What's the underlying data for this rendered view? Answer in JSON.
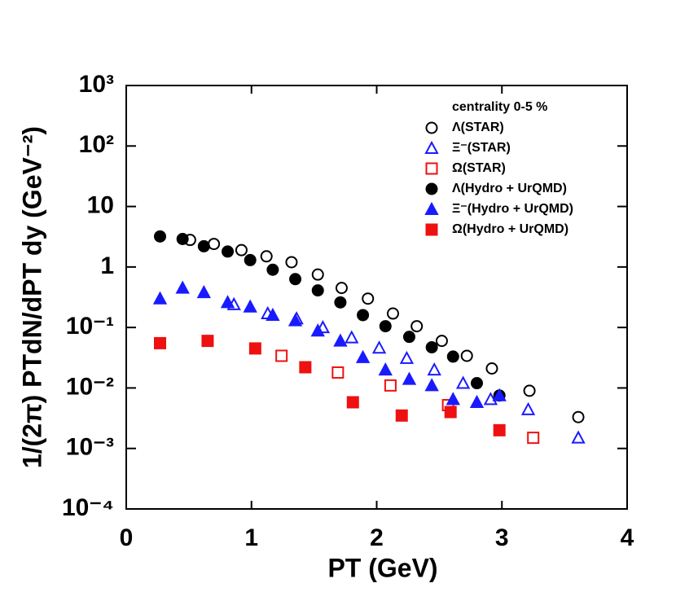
{
  "chart_data": {
    "type": "scatter",
    "xlabel": "PT (GeV)",
    "ylabel": "1/(2π) PTdN/dPT dy (GeV⁻²)",
    "log_y": true,
    "xlim": [
      0,
      4
    ],
    "ylim": [
      0.0001,
      1000
    ],
    "xticks": [
      0,
      1,
      2,
      3,
      4
    ],
    "yticks": [
      {
        "value": 0.0001,
        "label": "10⁻⁴"
      },
      {
        "value": 0.001,
        "label": "10⁻³"
      },
      {
        "value": 0.01,
        "label": "10⁻²"
      },
      {
        "value": 0.1,
        "label": "10⁻¹"
      },
      1,
      10,
      {
        "value": 100,
        "label": "10²"
      },
      {
        "value": 1000,
        "label": "10³"
      }
    ],
    "legend_title": "centrality 0-5 %",
    "legend_position": "upper right",
    "series": [
      {
        "name": "Λ(STAR)",
        "color": "#000000",
        "marker": "circle",
        "filled": false,
        "x": [
          0.51,
          0.7,
          0.92,
          1.12,
          1.32,
          1.53,
          1.72,
          1.93,
          2.13,
          2.32,
          2.52,
          2.72,
          2.92,
          3.22,
          3.61
        ],
        "values": [
          2.8,
          2.4,
          1.9,
          1.5,
          1.2,
          0.75,
          0.45,
          0.3,
          0.17,
          0.105,
          0.06,
          0.034,
          0.021,
          0.009,
          0.0033
        ]
      },
      {
        "name": "Ξ⁻(STAR)",
        "color": "#1a1aff",
        "marker": "triangle",
        "filled": false,
        "x": [
          0.86,
          1.13,
          1.36,
          1.57,
          1.8,
          2.02,
          2.24,
          2.46,
          2.69,
          2.91,
          3.21,
          3.61
        ],
        "values": [
          0.24,
          0.17,
          0.14,
          0.1,
          0.068,
          0.046,
          0.031,
          0.02,
          0.012,
          0.0065,
          0.0044,
          0.0015
        ]
      },
      {
        "name": "Ω(STAR)",
        "color": "#ee1111",
        "marker": "square",
        "filled": false,
        "x": [
          1.24,
          1.69,
          2.11,
          2.57,
          3.25
        ],
        "values": [
          0.034,
          0.018,
          0.011,
          0.0052,
          0.0015
        ]
      },
      {
        "name": "Λ(Hydro + UrQMD)",
        "color": "#000000",
        "marker": "circle",
        "filled": true,
        "x": [
          0.27,
          0.45,
          0.62,
          0.81,
          0.99,
          1.17,
          1.35,
          1.53,
          1.71,
          1.89,
          2.07,
          2.26,
          2.44,
          2.61,
          2.8,
          2.98
        ],
        "values": [
          3.2,
          2.9,
          2.2,
          1.8,
          1.3,
          0.9,
          0.63,
          0.41,
          0.26,
          0.16,
          0.105,
          0.07,
          0.047,
          0.033,
          0.012,
          0.0075
        ]
      },
      {
        "name": "Ξ⁻(Hydro + UrQMD)",
        "color": "#1a1aff",
        "marker": "triangle",
        "filled": true,
        "x": [
          0.27,
          0.45,
          0.62,
          0.81,
          0.99,
          1.17,
          1.35,
          1.53,
          1.71,
          1.89,
          2.07,
          2.26,
          2.44,
          2.61,
          2.8,
          2.98
        ],
        "values": [
          0.3,
          0.45,
          0.38,
          0.26,
          0.22,
          0.16,
          0.13,
          0.088,
          0.06,
          0.032,
          0.02,
          0.014,
          0.011,
          0.0065,
          0.0058,
          0.0075
        ]
      },
      {
        "name": "Ω(Hydro + UrQMD)",
        "color": "#ee1111",
        "marker": "square",
        "filled": true,
        "x": [
          0.27,
          0.65,
          1.03,
          1.43,
          1.81,
          2.2,
          2.59,
          2.98
        ],
        "values": [
          0.055,
          0.06,
          0.045,
          0.022,
          0.0058,
          0.0035,
          0.004,
          0.002
        ]
      }
    ]
  }
}
